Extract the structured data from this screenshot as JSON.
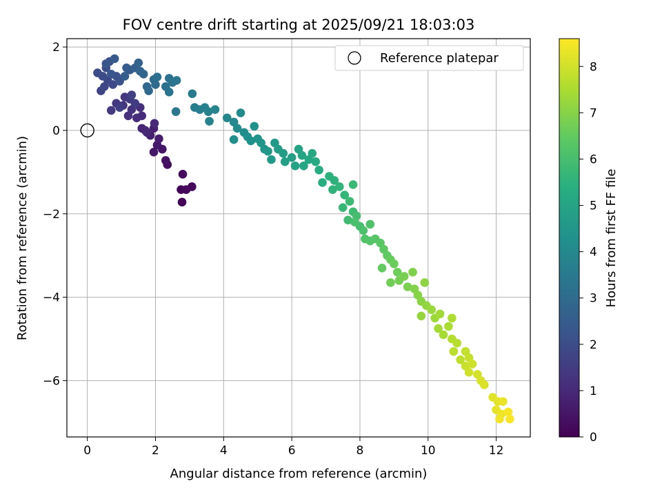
{
  "chart_data": {
    "type": "scatter",
    "title": "FOV centre drift starting at 2025/09/21 18:03:03",
    "xlabel": "Angular distance from reference (arcmin)",
    "ylabel": "Rotation from reference (arcmin)",
    "xlim": [
      -0.6,
      13.0
    ],
    "ylim": [
      -7.35,
      2.2
    ],
    "xticks": [
      0,
      2,
      4,
      6,
      8,
      10,
      12
    ],
    "yticks": [
      2,
      0,
      -2,
      -4,
      -6
    ],
    "grid": true,
    "legend": {
      "position": "top-right",
      "entries": [
        {
          "label": "Reference platepar",
          "marker": "open-circle"
        }
      ]
    },
    "reference_point": {
      "x": 0,
      "y": 0
    },
    "colorbar": {
      "label": "Hours from first FF file",
      "min": 0,
      "max": 8.6,
      "ticks": [
        0,
        1,
        2,
        3,
        4,
        5,
        6,
        7,
        8
      ],
      "colormap": "viridis"
    },
    "series": [
      {
        "name": "FOV centre",
        "points": [
          {
            "x": 2.78,
            "y": -1.72,
            "t": 0.05
          },
          {
            "x": 2.75,
            "y": -1.42,
            "t": 0.1
          },
          {
            "x": 2.9,
            "y": -1.42,
            "t": 0.15
          },
          {
            "x": 3.07,
            "y": -1.35,
            "t": 0.2
          },
          {
            "x": 2.8,
            "y": -1.05,
            "t": 0.25
          },
          {
            "x": 2.35,
            "y": -0.82,
            "t": 0.35
          },
          {
            "x": 2.3,
            "y": -0.72,
            "t": 0.4
          },
          {
            "x": 2.2,
            "y": -0.45,
            "t": 0.5
          },
          {
            "x": 1.95,
            "y": -0.52,
            "t": 0.55
          },
          {
            "x": 2.05,
            "y": -0.35,
            "t": 0.6
          },
          {
            "x": 2.1,
            "y": -0.2,
            "t": 0.7
          },
          {
            "x": 1.85,
            "y": -0.12,
            "t": 0.75
          },
          {
            "x": 1.95,
            "y": 0.05,
            "t": 0.8
          },
          {
            "x": 1.7,
            "y": 0.0,
            "t": 0.85
          },
          {
            "x": 1.6,
            "y": 0.05,
            "t": 0.9
          },
          {
            "x": 1.75,
            "y": -0.05,
            "t": 0.95
          },
          {
            "x": 1.97,
            "y": 0.17,
            "t": 1.0
          },
          {
            "x": 1.6,
            "y": 0.35,
            "t": 1.05
          },
          {
            "x": 1.45,
            "y": 0.3,
            "t": 1.1
          },
          {
            "x": 1.55,
            "y": 0.55,
            "t": 1.15
          },
          {
            "x": 1.2,
            "y": 0.35,
            "t": 1.2
          },
          {
            "x": 1.3,
            "y": 0.5,
            "t": 1.25
          },
          {
            "x": 1.05,
            "y": 0.6,
            "t": 1.3
          },
          {
            "x": 1.1,
            "y": 0.8,
            "t": 1.35
          },
          {
            "x": 0.85,
            "y": 0.65,
            "t": 1.4
          },
          {
            "x": 0.7,
            "y": 0.48,
            "t": 1.45
          },
          {
            "x": 1.25,
            "y": 0.75,
            "t": 1.5
          },
          {
            "x": 1.4,
            "y": 0.65,
            "t": 1.55
          },
          {
            "x": 0.95,
            "y": 0.55,
            "t": 1.6
          },
          {
            "x": 1.3,
            "y": 0.85,
            "t": 1.65
          },
          {
            "x": 0.4,
            "y": 0.95,
            "t": 1.75
          },
          {
            "x": 0.5,
            "y": 1.05,
            "t": 1.8
          },
          {
            "x": 0.6,
            "y": 1.2,
            "t": 1.85
          },
          {
            "x": 0.75,
            "y": 1.1,
            "t": 1.9
          },
          {
            "x": 0.3,
            "y": 1.38,
            "t": 1.95
          },
          {
            "x": 0.45,
            "y": 1.3,
            "t": 2.0
          },
          {
            "x": 0.55,
            "y": 1.5,
            "t": 2.05
          },
          {
            "x": 0.85,
            "y": 1.3,
            "t": 2.1
          },
          {
            "x": 0.95,
            "y": 1.18,
            "t": 2.15
          },
          {
            "x": 0.65,
            "y": 1.65,
            "t": 2.2
          },
          {
            "x": 0.7,
            "y": 1.35,
            "t": 2.25
          },
          {
            "x": 0.55,
            "y": 1.6,
            "t": 2.3
          },
          {
            "x": 0.8,
            "y": 1.72,
            "t": 2.4
          },
          {
            "x": 1.15,
            "y": 1.5,
            "t": 2.45
          },
          {
            "x": 1.25,
            "y": 1.45,
            "t": 2.5
          },
          {
            "x": 1.1,
            "y": 1.3,
            "t": 2.55
          },
          {
            "x": 1.4,
            "y": 1.5,
            "t": 2.6
          },
          {
            "x": 1.5,
            "y": 1.62,
            "t": 2.7
          },
          {
            "x": 1.55,
            "y": 1.42,
            "t": 2.75
          },
          {
            "x": 1.65,
            "y": 1.35,
            "t": 2.8
          },
          {
            "x": 1.75,
            "y": 1.05,
            "t": 2.85
          },
          {
            "x": 1.8,
            "y": 0.95,
            "t": 2.9
          },
          {
            "x": 1.95,
            "y": 1.22,
            "t": 2.95
          },
          {
            "x": 2.0,
            "y": 1.1,
            "t": 3.0
          },
          {
            "x": 2.05,
            "y": 1.28,
            "t": 3.1
          },
          {
            "x": 2.3,
            "y": 1.05,
            "t": 3.15
          },
          {
            "x": 2.4,
            "y": 1.25,
            "t": 3.2
          },
          {
            "x": 2.5,
            "y": 1.15,
            "t": 3.25
          },
          {
            "x": 2.4,
            "y": 0.92,
            "t": 3.3
          },
          {
            "x": 2.62,
            "y": 1.2,
            "t": 3.35
          },
          {
            "x": 2.6,
            "y": 0.45,
            "t": 3.4
          },
          {
            "x": 3.08,
            "y": 0.88,
            "t": 3.5
          },
          {
            "x": 3.15,
            "y": 0.55,
            "t": 3.6
          },
          {
            "x": 3.3,
            "y": 0.5,
            "t": 3.65
          },
          {
            "x": 3.45,
            "y": 0.55,
            "t": 3.7
          },
          {
            "x": 3.55,
            "y": 0.45,
            "t": 3.75
          },
          {
            "x": 3.58,
            "y": 0.22,
            "t": 3.8
          },
          {
            "x": 3.75,
            "y": 0.5,
            "t": 3.85
          },
          {
            "x": 4.1,
            "y": 0.3,
            "t": 3.95
          },
          {
            "x": 4.3,
            "y": 0.2,
            "t": 4.0
          },
          {
            "x": 4.4,
            "y": 0.05,
            "t": 4.05
          },
          {
            "x": 4.5,
            "y": 0.42,
            "t": 4.1
          },
          {
            "x": 4.6,
            "y": -0.05,
            "t": 4.15
          },
          {
            "x": 4.3,
            "y": -0.22,
            "t": 4.2
          },
          {
            "x": 4.7,
            "y": -0.15,
            "t": 4.25
          },
          {
            "x": 4.8,
            "y": -0.25,
            "t": 4.3
          },
          {
            "x": 4.9,
            "y": 0.1,
            "t": 4.35
          },
          {
            "x": 5.0,
            "y": -0.2,
            "t": 4.4
          },
          {
            "x": 5.1,
            "y": -0.3,
            "t": 4.45
          },
          {
            "x": 5.2,
            "y": -0.45,
            "t": 4.5
          },
          {
            "x": 5.3,
            "y": -0.5,
            "t": 4.55
          },
          {
            "x": 5.4,
            "y": -0.7,
            "t": 4.6
          },
          {
            "x": 5.5,
            "y": -0.3,
            "t": 4.65
          },
          {
            "x": 5.6,
            "y": -0.45,
            "t": 4.7
          },
          {
            "x": 5.75,
            "y": -0.55,
            "t": 4.75
          },
          {
            "x": 5.8,
            "y": -0.75,
            "t": 4.8
          },
          {
            "x": 6.0,
            "y": -0.65,
            "t": 4.85
          },
          {
            "x": 6.1,
            "y": -0.85,
            "t": 4.9
          },
          {
            "x": 6.2,
            "y": -0.45,
            "t": 4.95
          },
          {
            "x": 6.3,
            "y": -0.6,
            "t": 5.0
          },
          {
            "x": 6.35,
            "y": -0.85,
            "t": 5.05
          },
          {
            "x": 6.5,
            "y": -0.7,
            "t": 5.1
          },
          {
            "x": 6.6,
            "y": -0.55,
            "t": 5.15
          },
          {
            "x": 6.7,
            "y": -0.75,
            "t": 5.2
          },
          {
            "x": 6.8,
            "y": -0.95,
            "t": 5.25
          },
          {
            "x": 6.9,
            "y": -1.25,
            "t": 5.35
          },
          {
            "x": 7.1,
            "y": -1.1,
            "t": 5.45
          },
          {
            "x": 7.25,
            "y": -1.2,
            "t": 5.5
          },
          {
            "x": 7.2,
            "y": -1.42,
            "t": 5.55
          },
          {
            "x": 7.4,
            "y": -1.35,
            "t": 5.6
          },
          {
            "x": 7.55,
            "y": -1.55,
            "t": 5.65
          },
          {
            "x": 7.5,
            "y": -1.85,
            "t": 5.7
          },
          {
            "x": 7.8,
            "y": -1.3,
            "t": 5.75
          },
          {
            "x": 7.7,
            "y": -1.7,
            "t": 5.8
          },
          {
            "x": 7.8,
            "y": -1.95,
            "t": 5.85
          },
          {
            "x": 7.65,
            "y": -2.15,
            "t": 5.9
          },
          {
            "x": 7.9,
            "y": -2.05,
            "t": 5.95
          },
          {
            "x": 8.0,
            "y": -2.3,
            "t": 6.0
          },
          {
            "x": 7.85,
            "y": -2.2,
            "t": 6.05
          },
          {
            "x": 8.1,
            "y": -2.4,
            "t": 6.1
          },
          {
            "x": 8.3,
            "y": -2.25,
            "t": 6.15
          },
          {
            "x": 8.15,
            "y": -2.6,
            "t": 6.2
          },
          {
            "x": 8.3,
            "y": -2.65,
            "t": 6.25
          },
          {
            "x": 8.45,
            "y": -2.6,
            "t": 6.3
          },
          {
            "x": 8.6,
            "y": -2.7,
            "t": 6.35
          },
          {
            "x": 8.7,
            "y": -2.85,
            "t": 6.4
          },
          {
            "x": 8.8,
            "y": -3.0,
            "t": 6.45
          },
          {
            "x": 8.65,
            "y": -3.3,
            "t": 6.5
          },
          {
            "x": 8.9,
            "y": -3.1,
            "t": 6.55
          },
          {
            "x": 9.0,
            "y": -3.2,
            "t": 6.6
          },
          {
            "x": 9.1,
            "y": -3.4,
            "t": 6.65
          },
          {
            "x": 8.9,
            "y": -3.65,
            "t": 6.7
          },
          {
            "x": 9.15,
            "y": -3.6,
            "t": 6.75
          },
          {
            "x": 9.3,
            "y": -3.5,
            "t": 6.8
          },
          {
            "x": 9.4,
            "y": -3.75,
            "t": 6.85
          },
          {
            "x": 9.55,
            "y": -3.4,
            "t": 6.9
          },
          {
            "x": 9.6,
            "y": -3.8,
            "t": 6.95
          },
          {
            "x": 9.7,
            "y": -3.95,
            "t": 7.0
          },
          {
            "x": 9.8,
            "y": -4.1,
            "t": 7.05
          },
          {
            "x": 9.9,
            "y": -3.65,
            "t": 7.1
          },
          {
            "x": 9.95,
            "y": -4.2,
            "t": 7.15
          },
          {
            "x": 9.8,
            "y": -4.45,
            "t": 7.2
          },
          {
            "x": 10.1,
            "y": -4.3,
            "t": 7.25
          },
          {
            "x": 10.2,
            "y": -4.5,
            "t": 7.3
          },
          {
            "x": 10.35,
            "y": -4.4,
            "t": 7.35
          },
          {
            "x": 10.3,
            "y": -4.75,
            "t": 7.4
          },
          {
            "x": 10.45,
            "y": -4.9,
            "t": 7.45
          },
          {
            "x": 10.6,
            "y": -4.7,
            "t": 7.5
          },
          {
            "x": 10.7,
            "y": -4.5,
            "t": 7.55
          },
          {
            "x": 10.7,
            "y": -5.0,
            "t": 7.6
          },
          {
            "x": 10.85,
            "y": -5.1,
            "t": 7.65
          },
          {
            "x": 10.75,
            "y": -5.3,
            "t": 7.7
          },
          {
            "x": 10.95,
            "y": -5.5,
            "t": 7.75
          },
          {
            "x": 11.1,
            "y": -5.3,
            "t": 7.8
          },
          {
            "x": 11.2,
            "y": -5.45,
            "t": 7.85
          },
          {
            "x": 11.1,
            "y": -5.65,
            "t": 7.9
          },
          {
            "x": 11.3,
            "y": -5.6,
            "t": 7.95
          },
          {
            "x": 11.2,
            "y": -5.8,
            "t": 8.0
          },
          {
            "x": 11.45,
            "y": -5.85,
            "t": 8.05
          },
          {
            "x": 11.55,
            "y": -6.0,
            "t": 8.1
          },
          {
            "x": 11.65,
            "y": -6.1,
            "t": 8.15
          },
          {
            "x": 11.9,
            "y": -6.4,
            "t": 8.2
          },
          {
            "x": 12.05,
            "y": -6.5,
            "t": 8.25
          },
          {
            "x": 12.0,
            "y": -6.7,
            "t": 8.3
          },
          {
            "x": 12.2,
            "y": -6.5,
            "t": 8.35
          },
          {
            "x": 12.15,
            "y": -6.8,
            "t": 8.4
          },
          {
            "x": 12.1,
            "y": -6.92,
            "t": 8.45
          },
          {
            "x": 12.35,
            "y": -6.75,
            "t": 8.5
          },
          {
            "x": 12.4,
            "y": -6.92,
            "t": 8.55
          }
        ]
      }
    ]
  }
}
